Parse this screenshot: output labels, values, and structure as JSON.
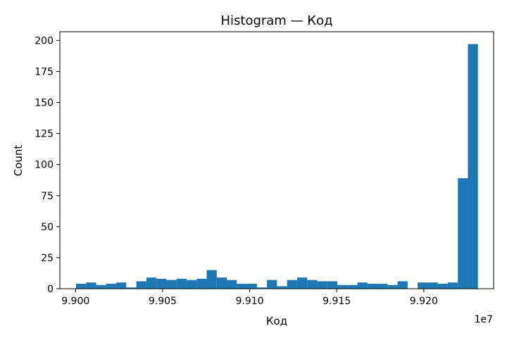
{
  "chart_data": {
    "type": "bar",
    "title": "Histogram — Код",
    "xlabel": "Код",
    "ylabel": "Count",
    "x_offset_text": "1e7",
    "xlim": [
      9.8991,
      9.92401
    ],
    "ylim": [
      0,
      207
    ],
    "xticks": [
      9.9,
      9.905,
      9.91,
      9.915,
      9.92
    ],
    "xtick_labels": [
      "9.900",
      "9.905",
      "9.910",
      "9.915",
      "9.920"
    ],
    "yticks": [
      0,
      25,
      50,
      75,
      100,
      125,
      150,
      175,
      200
    ],
    "ytick_labels": [
      "0",
      "25",
      "50",
      "75",
      "100",
      "125",
      "150",
      "175",
      "200"
    ],
    "grid": false,
    "bar_color": "#1f77b4",
    "bin_start": 9.90003,
    "bin_width": 0.000577,
    "values": [
      4,
      5,
      3,
      4,
      5,
      1,
      6,
      9,
      8,
      7,
      8,
      7,
      8,
      15,
      9,
      7,
      4,
      4,
      1,
      7,
      2,
      7,
      9,
      7,
      6,
      6,
      3,
      3,
      5,
      4,
      4,
      3,
      6,
      0,
      5,
      5,
      4,
      5,
      89,
      197
    ]
  }
}
